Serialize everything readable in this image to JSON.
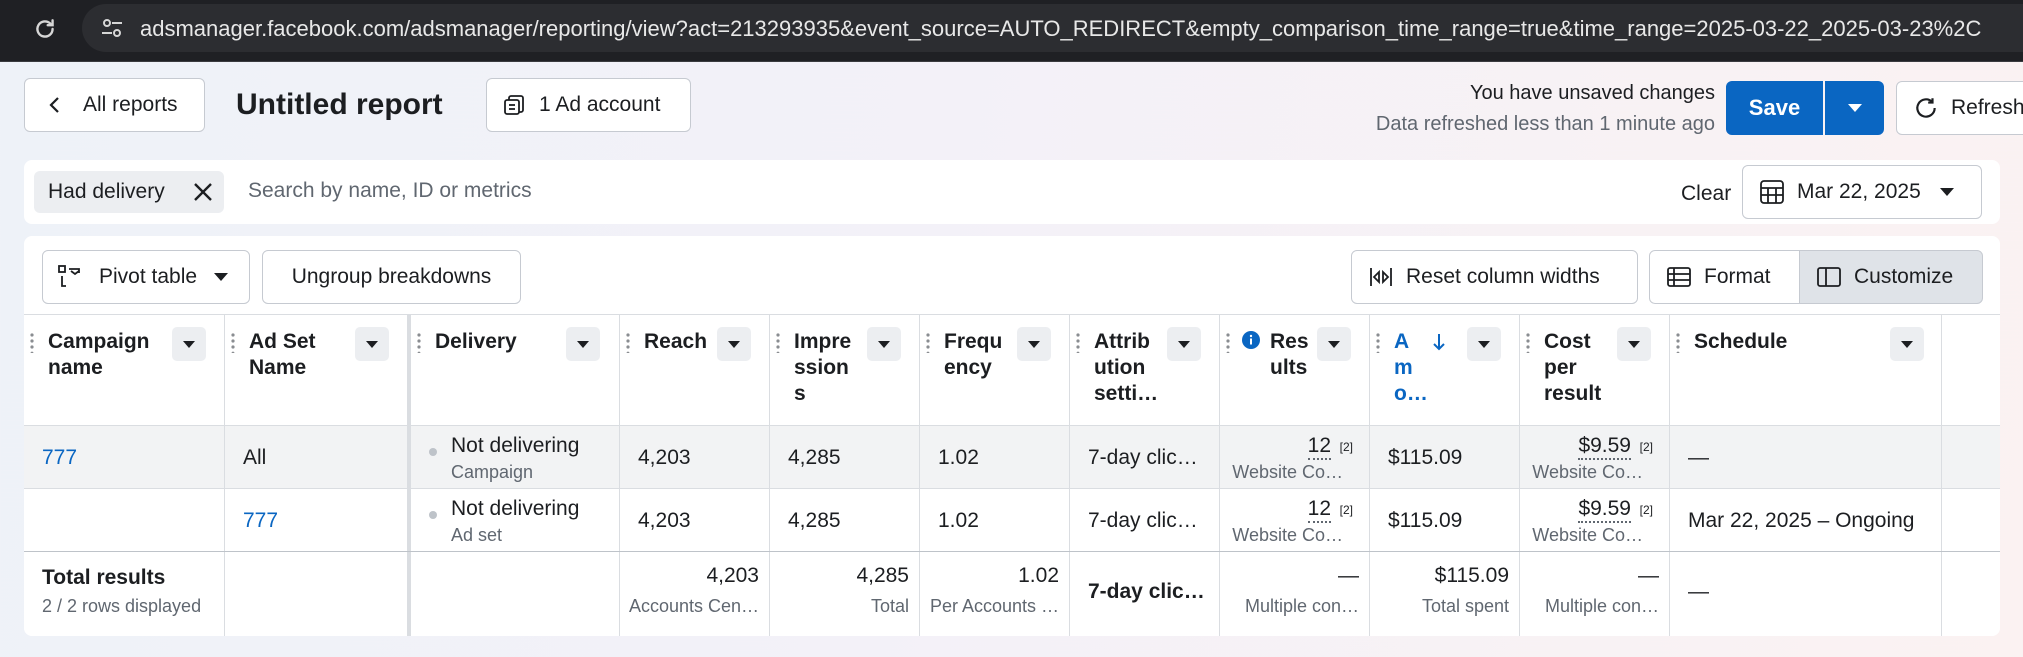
{
  "browser": {
    "url": "adsmanager.facebook.com/adsmanager/reporting/view?act=213293935&event_source=AUTO_REDIRECT&empty_comparison_time_range=true&time_range=2025-03-22_2025-03-23%2C"
  },
  "header": {
    "back_label": "All reports",
    "title": "Untitled report",
    "account_label": "1 Ad account",
    "unsaved": "You have unsaved changes",
    "refreshed": "Data refreshed less than 1 minute ago",
    "save_label": "Save",
    "refresh_label": "Refresh"
  },
  "filters": {
    "chip_label": "Had delivery",
    "search_placeholder": "Search by name, ID or metrics",
    "clear_label": "Clear",
    "date_label": "Mar 22, 2025"
  },
  "toolbar": {
    "pivot_label": "Pivot table",
    "ungroup_label": "Ungroup breakdowns",
    "reset_label": "Reset column widths",
    "format_label": "Format",
    "customize_label": "Customize"
  },
  "columns": {
    "campaign": "Campaign name",
    "adset": "Ad Set Name",
    "delivery": "Delivery",
    "reach": "Reach",
    "impressions": "Impressions",
    "frequency": "Frequency",
    "attribution": "Attribution setti…",
    "results": "Results",
    "amount": "Amo…",
    "cost": "Cost per result",
    "schedule": "Schedule"
  },
  "rows": [
    {
      "campaign": "777",
      "adset": "All",
      "delivery": "Not delivering",
      "delivery_sub": "Campaign",
      "reach": "4,203",
      "impressions": "4,285",
      "frequency": "1.02",
      "attribution": "7-day clic…",
      "results": "12",
      "results_note": "[2]",
      "results_sub": "Website Co…",
      "amount": "$115.09",
      "cost": "$9.59",
      "cost_note": "[2]",
      "cost_sub": "Website Co…",
      "schedule": "—"
    },
    {
      "campaign": "",
      "adset": "777",
      "delivery": "Not delivering",
      "delivery_sub": "Ad set",
      "reach": "4,203",
      "impressions": "4,285",
      "frequency": "1.02",
      "attribution": "7-day clic…",
      "results": "12",
      "results_note": "[2]",
      "results_sub": "Website Co…",
      "amount": "$115.09",
      "cost": "$9.59",
      "cost_note": "[2]",
      "cost_sub": "Website Co…",
      "schedule": "Mar 22, 2025 – Ongoing"
    }
  ],
  "totals": {
    "label": "Total results",
    "sub": "2 / 2 rows displayed",
    "reach": "4,203",
    "reach_sub": "Accounts Cen…",
    "impressions": "4,285",
    "impressions_sub": "Total",
    "frequency": "1.02",
    "frequency_sub": "Per Accounts …",
    "attribution": "7-day clic…",
    "results": "—",
    "results_sub": "Multiple con…",
    "amount": "$115.09",
    "amount_sub": "Total spent",
    "cost": "—",
    "cost_sub": "Multiple con…",
    "schedule": "—"
  },
  "colors": {
    "primary": "#0a66c2",
    "link": "#0a66c2",
    "browser_bar": "#1f2024"
  }
}
